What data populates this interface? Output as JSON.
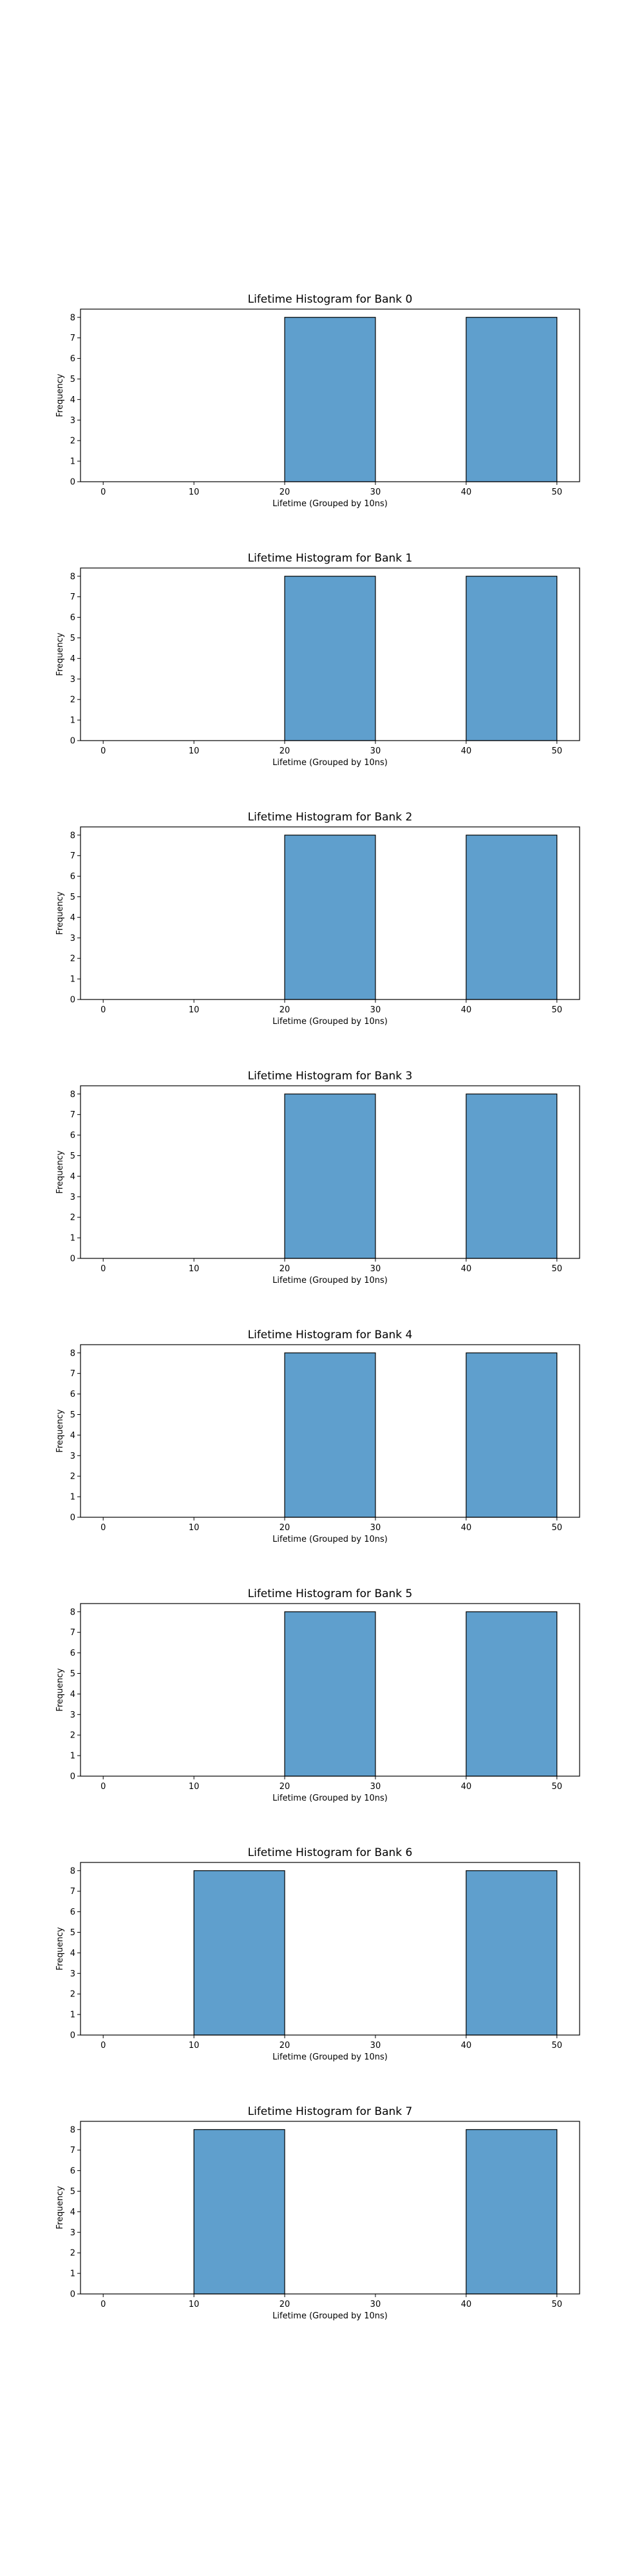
{
  "page": {
    "background": "#ffffff"
  },
  "chart_data": [
    {
      "type": "bar",
      "title": "Lifetime Histogram for Bank 0",
      "xlabel": "Lifetime (Grouped by 10ns)",
      "ylabel": "Frequency",
      "bins": [
        [
          20,
          30
        ],
        [
          40,
          50
        ]
      ],
      "values": [
        8,
        8
      ],
      "xticks": [
        "0",
        "10",
        "20",
        "30",
        "40",
        "50"
      ],
      "yticks": [
        "0",
        "1",
        "2",
        "3",
        "4",
        "5",
        "6",
        "7",
        "8"
      ],
      "xlim": [
        -2.5,
        52.5
      ],
      "ylim": [
        0,
        8.4
      ],
      "bar_color": "#5f9fcd",
      "edge_color": "#000000",
      "grid": false
    },
    {
      "type": "bar",
      "title": "Lifetime Histogram for Bank 1",
      "xlabel": "Lifetime (Grouped by 10ns)",
      "ylabel": "Frequency",
      "bins": [
        [
          20,
          30
        ],
        [
          40,
          50
        ]
      ],
      "values": [
        8,
        8
      ],
      "xticks": [
        "0",
        "10",
        "20",
        "30",
        "40",
        "50"
      ],
      "yticks": [
        "0",
        "1",
        "2",
        "3",
        "4",
        "5",
        "6",
        "7",
        "8"
      ],
      "xlim": [
        -2.5,
        52.5
      ],
      "ylim": [
        0,
        8.4
      ],
      "bar_color": "#5f9fcd",
      "edge_color": "#000000",
      "grid": false
    },
    {
      "type": "bar",
      "title": "Lifetime Histogram for Bank 2",
      "xlabel": "Lifetime (Grouped by 10ns)",
      "ylabel": "Frequency",
      "bins": [
        [
          20,
          30
        ],
        [
          40,
          50
        ]
      ],
      "values": [
        8,
        8
      ],
      "xticks": [
        "0",
        "10",
        "20",
        "30",
        "40",
        "50"
      ],
      "yticks": [
        "0",
        "1",
        "2",
        "3",
        "4",
        "5",
        "6",
        "7",
        "8"
      ],
      "xlim": [
        -2.5,
        52.5
      ],
      "ylim": [
        0,
        8.4
      ],
      "bar_color": "#5f9fcd",
      "edge_color": "#000000",
      "grid": false
    },
    {
      "type": "bar",
      "title": "Lifetime Histogram for Bank 3",
      "xlabel": "Lifetime (Grouped by 10ns)",
      "ylabel": "Frequency",
      "bins": [
        [
          20,
          30
        ],
        [
          40,
          50
        ]
      ],
      "values": [
        8,
        8
      ],
      "xticks": [
        "0",
        "10",
        "20",
        "30",
        "40",
        "50"
      ],
      "yticks": [
        "0",
        "1",
        "2",
        "3",
        "4",
        "5",
        "6",
        "7",
        "8"
      ],
      "xlim": [
        -2.5,
        52.5
      ],
      "ylim": [
        0,
        8.4
      ],
      "bar_color": "#5f9fcd",
      "edge_color": "#000000",
      "grid": false
    },
    {
      "type": "bar",
      "title": "Lifetime Histogram for Bank 4",
      "xlabel": "Lifetime (Grouped by 10ns)",
      "ylabel": "Frequency",
      "bins": [
        [
          20,
          30
        ],
        [
          40,
          50
        ]
      ],
      "values": [
        8,
        8
      ],
      "xticks": [
        "0",
        "10",
        "20",
        "30",
        "40",
        "50"
      ],
      "yticks": [
        "0",
        "1",
        "2",
        "3",
        "4",
        "5",
        "6",
        "7",
        "8"
      ],
      "xlim": [
        -2.5,
        52.5
      ],
      "ylim": [
        0,
        8.4
      ],
      "bar_color": "#5f9fcd",
      "edge_color": "#000000",
      "grid": false
    },
    {
      "type": "bar",
      "title": "Lifetime Histogram for Bank 5",
      "xlabel": "Lifetime (Grouped by 10ns)",
      "ylabel": "Frequency",
      "bins": [
        [
          20,
          30
        ],
        [
          40,
          50
        ]
      ],
      "values": [
        8,
        8
      ],
      "xticks": [
        "0",
        "10",
        "20",
        "30",
        "40",
        "50"
      ],
      "yticks": [
        "0",
        "1",
        "2",
        "3",
        "4",
        "5",
        "6",
        "7",
        "8"
      ],
      "xlim": [
        -2.5,
        52.5
      ],
      "ylim": [
        0,
        8.4
      ],
      "bar_color": "#5f9fcd",
      "edge_color": "#000000",
      "grid": false
    },
    {
      "type": "bar",
      "title": "Lifetime Histogram for Bank 6",
      "xlabel": "Lifetime (Grouped by 10ns)",
      "ylabel": "Frequency",
      "bins": [
        [
          10,
          20
        ],
        [
          40,
          50
        ]
      ],
      "values": [
        8,
        8
      ],
      "xticks": [
        "0",
        "10",
        "20",
        "30",
        "40",
        "50"
      ],
      "yticks": [
        "0",
        "1",
        "2",
        "3",
        "4",
        "5",
        "6",
        "7",
        "8"
      ],
      "xlim": [
        -2.5,
        52.5
      ],
      "ylim": [
        0,
        8.4
      ],
      "bar_color": "#5f9fcd",
      "edge_color": "#000000",
      "grid": false
    },
    {
      "type": "bar",
      "title": "Lifetime Histogram for Bank 7",
      "xlabel": "Lifetime (Grouped by 10ns)",
      "ylabel": "Frequency",
      "bins": [
        [
          10,
          20
        ],
        [
          40,
          50
        ]
      ],
      "values": [
        8,
        8
      ],
      "xticks": [
        "0",
        "10",
        "20",
        "30",
        "40",
        "50"
      ],
      "yticks": [
        "0",
        "1",
        "2",
        "3",
        "4",
        "5",
        "6",
        "7",
        "8"
      ],
      "xlim": [
        -2.5,
        52.5
      ],
      "ylim": [
        0,
        8.4
      ],
      "bar_color": "#5f9fcd",
      "edge_color": "#000000",
      "grid": false
    }
  ]
}
